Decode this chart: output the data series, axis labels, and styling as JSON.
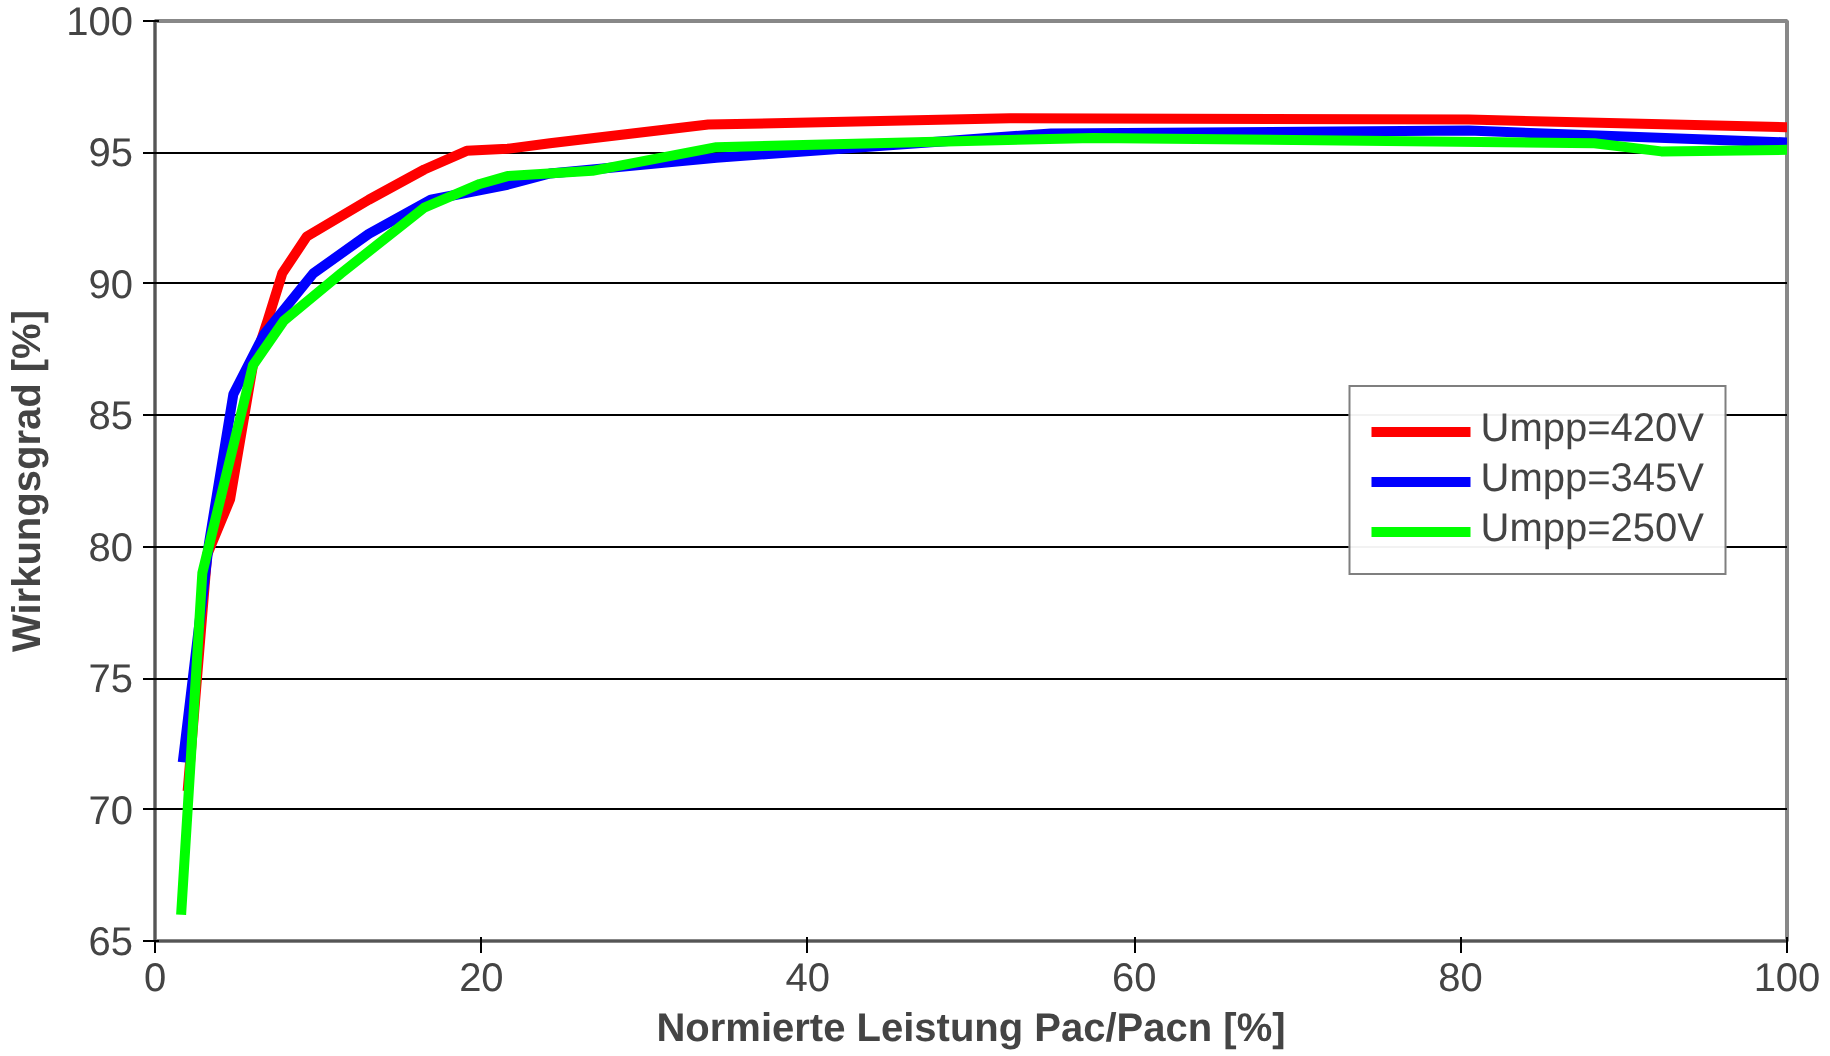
{
  "chart_data": {
    "type": "line",
    "xlabel": "Normierte Leistung Pac/Pacn [%]",
    "ylabel": "Wirkungsgrad [%]",
    "xlim": [
      0,
      100
    ],
    "ylim": [
      65,
      100
    ],
    "xticks": [
      0,
      20,
      40,
      60,
      80,
      100
    ],
    "yticks": [
      65,
      70,
      75,
      80,
      85,
      90,
      95,
      100
    ],
    "grid": "y",
    "legend": "right",
    "line_style": "solid",
    "marker": "none",
    "series": [
      {
        "name": "Umpp=420V",
        "color": "#ff0000",
        "x": [
          2.0,
          3.2,
          4.6,
          6.0,
          6.9,
          7.8,
          9.3,
          13.1,
          16.5,
          19.1,
          21.6,
          24.2,
          33.9,
          52.4,
          80.5,
          100
        ],
        "values": [
          70.7,
          79.7,
          81.8,
          86.9,
          88.6,
          90.4,
          91.8,
          93.2,
          94.35,
          95.06,
          95.14,
          95.35,
          96.06,
          96.3,
          96.25,
          95.96
        ]
      },
      {
        "name": "Umpp=345V",
        "color": "#0000ff",
        "x": [
          1.7,
          3.3,
          4.8,
          6.7,
          9.7,
          13.1,
          16.9,
          21.6,
          24.2,
          34.4,
          54.9,
          80.5,
          100
        ],
        "values": [
          71.8,
          80.1,
          85.8,
          88.1,
          90.4,
          91.9,
          93.2,
          93.77,
          94.2,
          94.8,
          95.72,
          95.83,
          95.38
        ]
      },
      {
        "name": "Umpp=250V",
        "color": "#00ff00",
        "x": [
          1.6,
          2.9,
          6.0,
          7.9,
          11.4,
          16.5,
          19.9,
          21.6,
          26.8,
          34.4,
          57.5,
          88.2,
          92.3,
          100
        ],
        "values": [
          66.0,
          79.0,
          86.9,
          88.6,
          90.4,
          92.9,
          93.8,
          94.1,
          94.3,
          95.2,
          95.55,
          95.35,
          95.04,
          95.1
        ]
      }
    ]
  }
}
